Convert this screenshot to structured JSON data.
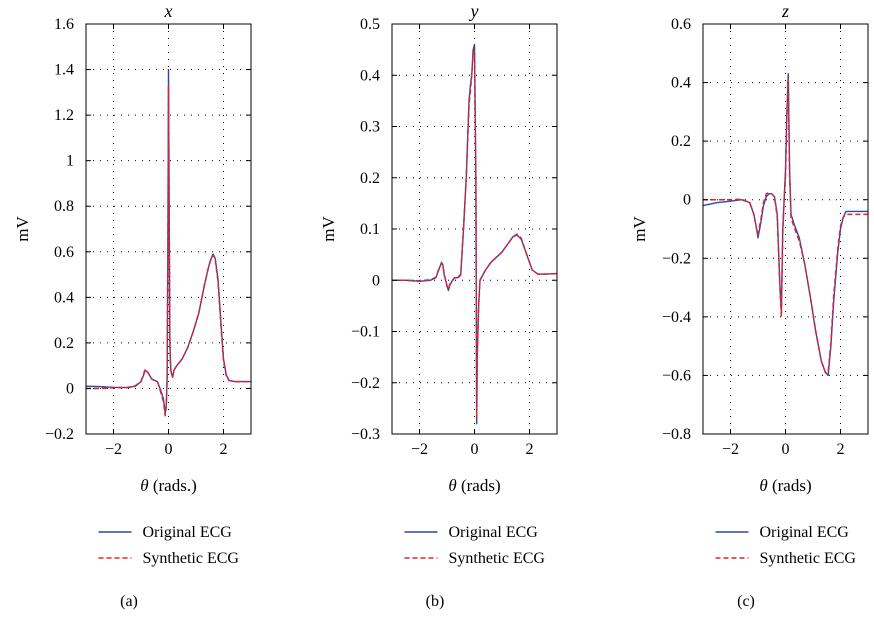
{
  "colors": {
    "original": "#2b4aa8",
    "synthetic": "#e8202a",
    "axis": "#000000",
    "grid": "#000000"
  },
  "legend": {
    "original_label": "Original ECG",
    "synthetic_label": "Synthetic ECG"
  },
  "chart_data": [
    {
      "type": "line",
      "panel_label": "(a)",
      "title": "x",
      "xlabel": "θ (rads.)",
      "ylabel": "mV",
      "xlim": [
        -3.0,
        3.0
      ],
      "ylim": [
        -0.2,
        1.6
      ],
      "xticks": [
        -2,
        0,
        2
      ],
      "xtick_labels": [
        "−2",
        "0",
        "2"
      ],
      "yticks": [
        -0.2,
        0,
        0.2,
        0.4,
        0.6,
        0.8,
        1.0,
        1.2,
        1.4,
        1.6
      ],
      "ytick_labels": [
        "−0.2",
        "0",
        "0.2",
        "0.4",
        "0.6",
        "0.8",
        "1",
        "1.2",
        "1.4",
        "1.6"
      ],
      "grid": true,
      "legend_position": "below",
      "series": [
        {
          "name": "Original ECG",
          "style": "solid",
          "x": [
            -3.0,
            -2.5,
            -2.0,
            -1.5,
            -1.2,
            -1.0,
            -0.9,
            -0.85,
            -0.75,
            -0.6,
            -0.4,
            -0.25,
            -0.18,
            -0.12,
            -0.08,
            -0.05,
            -0.02,
            0.0,
            0.02,
            0.05,
            0.08,
            0.1,
            0.15,
            0.2,
            0.3,
            0.5,
            0.7,
            0.9,
            1.1,
            1.3,
            1.45,
            1.55,
            1.62,
            1.7,
            1.8,
            1.9,
            2.0,
            2.1,
            2.2,
            2.4,
            2.7,
            3.0
          ],
          "y": [
            0.01,
            0.008,
            0.005,
            0.004,
            0.01,
            0.03,
            0.06,
            0.08,
            0.07,
            0.04,
            0.03,
            -0.02,
            -0.05,
            -0.11,
            -0.07,
            0.05,
            0.7,
            1.4,
            0.9,
            0.2,
            0.09,
            0.07,
            0.05,
            0.08,
            0.1,
            0.13,
            0.18,
            0.25,
            0.33,
            0.45,
            0.53,
            0.57,
            0.59,
            0.57,
            0.48,
            0.3,
            0.13,
            0.06,
            0.035,
            0.03,
            0.03,
            0.03
          ]
        },
        {
          "name": "Synthetic ECG",
          "style": "dashed",
          "x": [
            -3.0,
            -2.5,
            -2.0,
            -1.5,
            -1.2,
            -1.0,
            -0.9,
            -0.85,
            -0.75,
            -0.6,
            -0.4,
            -0.25,
            -0.18,
            -0.12,
            -0.08,
            -0.05,
            -0.02,
            0.0,
            0.02,
            0.05,
            0.08,
            0.1,
            0.15,
            0.2,
            0.3,
            0.5,
            0.7,
            0.9,
            1.1,
            1.3,
            1.45,
            1.55,
            1.62,
            1.7,
            1.8,
            1.9,
            2.0,
            2.1,
            2.2,
            2.4,
            2.7,
            3.0
          ],
          "y": [
            0.0,
            0.0,
            0.003,
            0.004,
            0.012,
            0.032,
            0.065,
            0.085,
            0.07,
            0.04,
            0.03,
            -0.03,
            -0.06,
            -0.12,
            -0.08,
            0.04,
            0.65,
            1.33,
            0.85,
            0.18,
            0.085,
            0.068,
            0.05,
            0.08,
            0.1,
            0.13,
            0.18,
            0.25,
            0.33,
            0.45,
            0.53,
            0.57,
            0.585,
            0.565,
            0.47,
            0.29,
            0.12,
            0.055,
            0.035,
            0.03,
            0.03,
            0.03
          ]
        }
      ]
    },
    {
      "type": "line",
      "panel_label": "(b)",
      "title": "y",
      "xlabel": "θ (rads)",
      "ylabel": "mV",
      "xlim": [
        -3.0,
        3.0
      ],
      "ylim": [
        -0.3,
        0.5
      ],
      "xticks": [
        -2,
        0,
        2
      ],
      "xtick_labels": [
        "−2",
        "0",
        "2"
      ],
      "yticks": [
        -0.3,
        -0.2,
        -0.1,
        0,
        0.1,
        0.2,
        0.3,
        0.4,
        0.5
      ],
      "ytick_labels": [
        "−0.3",
        "−0.2",
        "−0.1",
        "0",
        "0.1",
        "0.2",
        "0.3",
        "0.4",
        "0.5"
      ],
      "grid": true,
      "legend_position": "below",
      "series": [
        {
          "name": "Original ECG",
          "style": "solid",
          "x": [
            -3.0,
            -2.5,
            -2.0,
            -1.6,
            -1.4,
            -1.3,
            -1.2,
            -1.15,
            -1.1,
            -1.0,
            -0.95,
            -0.9,
            -0.8,
            -0.7,
            -0.6,
            -0.5,
            -0.4,
            -0.3,
            -0.2,
            -0.15,
            -0.1,
            -0.05,
            0.0,
            0.05,
            0.08,
            0.1,
            0.15,
            0.2,
            0.3,
            0.4,
            0.6,
            0.8,
            1.0,
            1.2,
            1.4,
            1.55,
            1.7,
            1.9,
            2.1,
            2.3,
            2.6,
            3.0
          ],
          "y": [
            0.0,
            0.0,
            -0.002,
            0.0,
            0.005,
            0.02,
            0.035,
            0.03,
            0.01,
            -0.01,
            -0.02,
            -0.01,
            0.0,
            0.005,
            0.005,
            0.01,
            0.1,
            0.2,
            0.35,
            0.38,
            0.4,
            0.45,
            0.46,
            0.2,
            -0.28,
            -0.15,
            -0.05,
            0.0,
            0.01,
            0.02,
            0.035,
            0.045,
            0.055,
            0.07,
            0.085,
            0.088,
            0.08,
            0.05,
            0.02,
            0.012,
            0.012,
            0.013
          ]
        },
        {
          "name": "Synthetic ECG",
          "style": "dashed",
          "x": [
            -3.0,
            -2.5,
            -2.0,
            -1.6,
            -1.4,
            -1.3,
            -1.2,
            -1.15,
            -1.1,
            -1.0,
            -0.95,
            -0.9,
            -0.8,
            -0.7,
            -0.6,
            -0.5,
            -0.4,
            -0.3,
            -0.2,
            -0.15,
            -0.1,
            -0.05,
            0.0,
            0.05,
            0.08,
            0.1,
            0.15,
            0.2,
            0.3,
            0.4,
            0.6,
            0.8,
            1.0,
            1.2,
            1.4,
            1.55,
            1.7,
            1.9,
            2.1,
            2.3,
            2.6,
            3.0
          ],
          "y": [
            0.0,
            0.0,
            -0.001,
            0.001,
            0.006,
            0.022,
            0.033,
            0.028,
            0.012,
            -0.012,
            -0.018,
            -0.008,
            0.0,
            0.006,
            0.006,
            0.012,
            0.1,
            0.2,
            0.34,
            0.37,
            0.4,
            0.44,
            0.45,
            0.18,
            -0.27,
            -0.14,
            -0.05,
            0.0,
            0.01,
            0.02,
            0.035,
            0.045,
            0.055,
            0.07,
            0.085,
            0.09,
            0.082,
            0.05,
            0.02,
            0.012,
            0.012,
            0.013
          ]
        }
      ]
    },
    {
      "type": "line",
      "panel_label": "(c)",
      "title": "z",
      "xlabel": "θ (rads)",
      "ylabel": "mV",
      "xlim": [
        -3.0,
        3.0
      ],
      "ylim": [
        -0.8,
        0.6
      ],
      "xticks": [
        -2,
        0,
        2
      ],
      "xtick_labels": [
        "−2",
        "0",
        "2"
      ],
      "yticks": [
        -0.8,
        -0.6,
        -0.4,
        -0.2,
        0,
        0.2,
        0.4,
        0.6
      ],
      "ytick_labels": [
        "−0.8",
        "−0.6",
        "−0.4",
        "−0.2",
        "0",
        "0.2",
        "0.4",
        "0.6"
      ],
      "grid": true,
      "legend_position": "below",
      "series": [
        {
          "name": "Original ECG",
          "style": "solid",
          "x": [
            -3.0,
            -2.5,
            -2.0,
            -1.6,
            -1.3,
            -1.15,
            -1.05,
            -1.0,
            -0.9,
            -0.8,
            -0.7,
            -0.6,
            -0.5,
            -0.4,
            -0.3,
            -0.2,
            -0.15,
            -0.1,
            -0.05,
            0.0,
            0.05,
            0.1,
            0.15,
            0.2,
            0.3,
            0.5,
            0.7,
            0.9,
            1.1,
            1.3,
            1.45,
            1.55,
            1.65,
            1.75,
            1.9,
            2.0,
            2.1,
            2.2,
            2.4,
            2.6,
            3.0
          ],
          "y": [
            -0.02,
            -0.01,
            -0.005,
            0.0,
            -0.01,
            -0.05,
            -0.1,
            -0.13,
            -0.08,
            -0.02,
            0.01,
            0.02,
            0.02,
            0.01,
            -0.05,
            -0.3,
            -0.38,
            -0.1,
            0.0,
            0.1,
            0.3,
            0.43,
            0.1,
            -0.05,
            -0.08,
            -0.13,
            -0.22,
            -0.33,
            -0.45,
            -0.55,
            -0.59,
            -0.6,
            -0.5,
            -0.35,
            -0.18,
            -0.1,
            -0.06,
            -0.04,
            -0.04,
            -0.04,
            -0.04
          ]
        },
        {
          "name": "Synthetic ECG",
          "style": "dashed",
          "x": [
            -3.0,
            -2.5,
            -2.0,
            -1.6,
            -1.3,
            -1.15,
            -1.05,
            -1.0,
            -0.9,
            -0.8,
            -0.7,
            -0.6,
            -0.5,
            -0.4,
            -0.3,
            -0.2,
            -0.15,
            -0.1,
            -0.05,
            0.0,
            0.05,
            0.1,
            0.15,
            0.2,
            0.3,
            0.5,
            0.7,
            0.9,
            1.1,
            1.3,
            1.45,
            1.55,
            1.65,
            1.75,
            1.9,
            2.0,
            2.1,
            2.2,
            2.4,
            2.6,
            3.0
          ],
          "y": [
            0.0,
            0.0,
            0.0,
            0.002,
            -0.01,
            -0.05,
            -0.1,
            -0.12,
            -0.07,
            -0.01,
            0.02,
            0.025,
            0.02,
            0.01,
            -0.06,
            -0.31,
            -0.4,
            -0.12,
            0.0,
            0.08,
            0.28,
            0.41,
            0.08,
            -0.06,
            -0.09,
            -0.14,
            -0.22,
            -0.33,
            -0.45,
            -0.55,
            -0.59,
            -0.59,
            -0.49,
            -0.33,
            -0.17,
            -0.09,
            -0.06,
            -0.05,
            -0.05,
            -0.05,
            -0.05
          ]
        }
      ]
    }
  ]
}
